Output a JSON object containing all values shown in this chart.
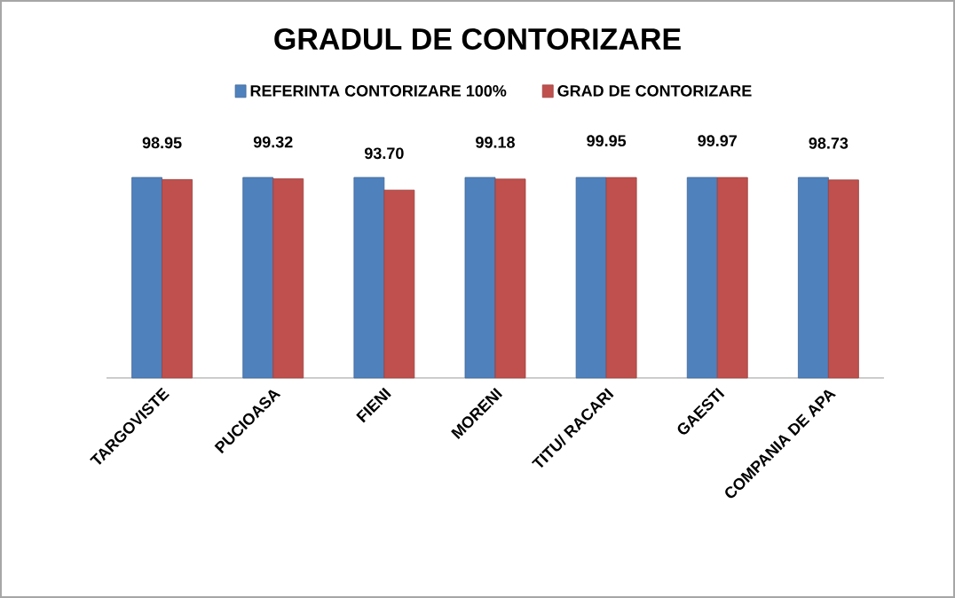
{
  "chart_data": {
    "type": "bar",
    "title": "GRADUL  DE CONTORIZARE",
    "categories": [
      "TARGOVISTE",
      "PUCIOASA",
      "FIENI",
      "MORENI",
      "TITU/ RACARI",
      "GAESTI",
      "COMPANIA DE APA"
    ],
    "series": [
      {
        "name": "REFERINTA CONTORIZARE 100%",
        "color": "#4f81bd",
        "values": [
          100,
          100,
          100,
          100,
          100,
          100,
          100
        ]
      },
      {
        "name": "GRAD DE CONTORIZARE",
        "color": "#c0504d",
        "values": [
          98.95,
          99.32,
          93.7,
          99.18,
          99.95,
          99.97,
          98.73
        ],
        "value_labels": [
          "98.95",
          "99.32",
          "93.70",
          "99.18",
          "99.95",
          "99.97",
          "98.73"
        ]
      }
    ],
    "ylim": [
      0,
      100
    ],
    "tick_labels": "x",
    "legend": "top"
  }
}
